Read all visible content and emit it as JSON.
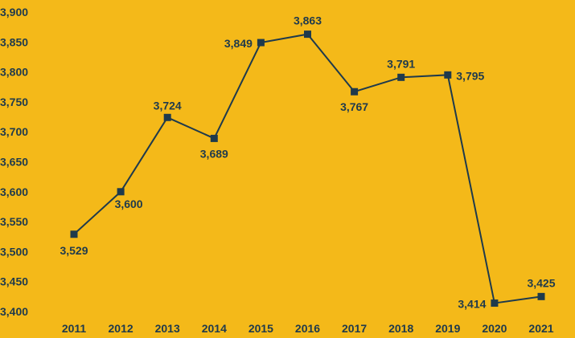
{
  "chart_data": {
    "type": "line",
    "title": "",
    "xlabel": "",
    "ylabel": "",
    "x": [
      "2011",
      "2012",
      "2013",
      "2014",
      "2015",
      "2016",
      "2017",
      "2018",
      "2019",
      "2020",
      "2021"
    ],
    "values": [
      3529,
      3600,
      3724,
      3689,
      3849,
      3863,
      3767,
      3791,
      3795,
      3414,
      3425
    ],
    "value_labels": [
      "3,529",
      "3,600",
      "3,724",
      "3,689",
      "3,849",
      "3,863",
      "3,767",
      "3,791",
      "3,795",
      "3,414",
      "3,425"
    ],
    "ylim": [
      3400,
      3900
    ],
    "yticks": [
      3400,
      3450,
      3500,
      3550,
      3600,
      3650,
      3700,
      3750,
      3800,
      3850,
      3900
    ],
    "ytick_labels": [
      "3,400",
      "3,450",
      "3,500",
      "3,550",
      "3,600",
      "3,650",
      "3,700",
      "3,750",
      "3,800",
      "3,850",
      "3,900"
    ],
    "grid": false,
    "legend": "none",
    "marker": "square",
    "colors": {
      "background": "#F4B919",
      "line": "#1F3A4C",
      "marker": "#1F3A4C",
      "text": "#1F3A4C"
    }
  }
}
